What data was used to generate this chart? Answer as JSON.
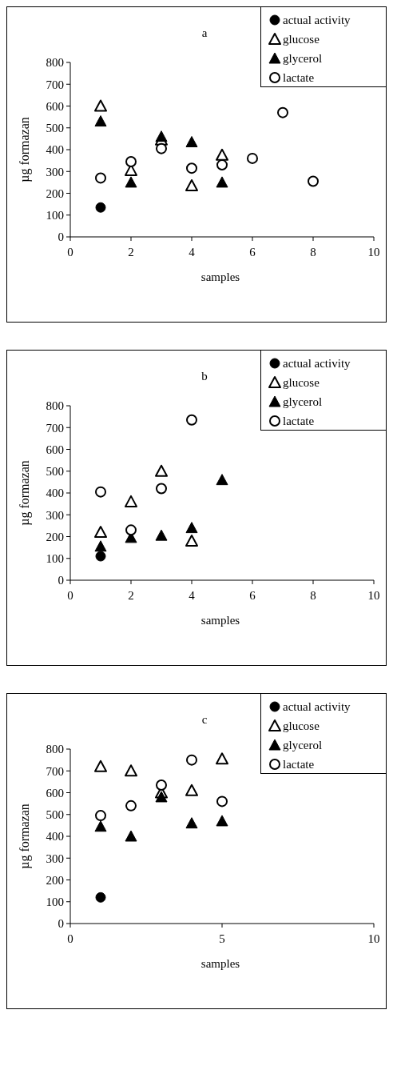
{
  "chart_data": [
    {
      "type": "scatter",
      "title": "a",
      "xlabel": "samples",
      "ylabel": "µg formazan",
      "xlim": [
        0,
        10
      ],
      "xticks": [
        0,
        2,
        4,
        6,
        8,
        10
      ],
      "ylim": [
        0,
        800
      ],
      "yticks": [
        0,
        100,
        200,
        300,
        400,
        500,
        600,
        700,
        800
      ],
      "legend": "top right",
      "series": [
        {
          "name": "actual activity",
          "color": "#000000",
          "marker": "circle",
          "x": [
            1
          ],
          "values": [
            135
          ]
        },
        {
          "name": "glucose",
          "color": "#000000",
          "marker": "triangle-open",
          "x": [
            1,
            2,
            3,
            4,
            5
          ],
          "values": [
            600,
            305,
            445,
            235,
            375
          ]
        },
        {
          "name": "glycerol",
          "color": "#000000",
          "marker": "triangle",
          "x": [
            1,
            2,
            3,
            4,
            5
          ],
          "values": [
            530,
            250,
            460,
            435,
            250
          ]
        },
        {
          "name": "lactate",
          "color": "#000000",
          "marker": "circle-open",
          "x": [
            1,
            2,
            3,
            4,
            5,
            6,
            7,
            8
          ],
          "values": [
            270,
            345,
            405,
            315,
            330,
            360,
            570,
            255
          ]
        }
      ]
    },
    {
      "type": "scatter",
      "title": "b",
      "xlabel": "samples",
      "ylabel": "µg formazan",
      "xlim": [
        0,
        10
      ],
      "xticks": [
        0,
        2,
        4,
        6,
        8,
        10
      ],
      "ylim": [
        0,
        800
      ],
      "yticks": [
        0,
        100,
        200,
        300,
        400,
        500,
        600,
        700,
        800
      ],
      "legend": "top right",
      "series": [
        {
          "name": "actual activity",
          "color": "#000000",
          "marker": "circle",
          "x": [
            1
          ],
          "values": [
            110
          ]
        },
        {
          "name": "glucose",
          "color": "#000000",
          "marker": "triangle-open",
          "x": [
            1,
            2,
            3,
            4
          ],
          "values": [
            220,
            360,
            500,
            180
          ]
        },
        {
          "name": "glycerol",
          "color": "#000000",
          "marker": "triangle",
          "x": [
            1,
            2,
            3,
            4,
            5
          ],
          "values": [
            155,
            195,
            205,
            240,
            460
          ]
        },
        {
          "name": "lactate",
          "color": "#000000",
          "marker": "circle-open",
          "x": [
            1,
            2,
            3,
            4
          ],
          "values": [
            405,
            230,
            420,
            735
          ]
        }
      ]
    },
    {
      "type": "scatter",
      "title": "c",
      "xlabel": "samples",
      "ylabel": "µg formazan",
      "xlim": [
        0,
        10
      ],
      "xticks": [
        0,
        5,
        10
      ],
      "ylim": [
        0,
        800
      ],
      "yticks": [
        0,
        100,
        200,
        300,
        400,
        500,
        600,
        700,
        800
      ],
      "legend": "top right",
      "series": [
        {
          "name": "actual activity",
          "color": "#000000",
          "marker": "circle",
          "x": [
            1
          ],
          "values": [
            120
          ]
        },
        {
          "name": "glucose",
          "color": "#000000",
          "marker": "triangle-open",
          "x": [
            1,
            2,
            3,
            4,
            5
          ],
          "values": [
            720,
            700,
            600,
            610,
            755
          ]
        },
        {
          "name": "glycerol",
          "color": "#000000",
          "marker": "triangle",
          "x": [
            1,
            2,
            3,
            4,
            5
          ],
          "values": [
            445,
            400,
            580,
            460,
            470
          ]
        },
        {
          "name": "lactate",
          "color": "#000000",
          "marker": "circle-open",
          "x": [
            1,
            2,
            3,
            4,
            5
          ],
          "values": [
            495,
            540,
            635,
            750,
            560
          ]
        }
      ]
    }
  ]
}
